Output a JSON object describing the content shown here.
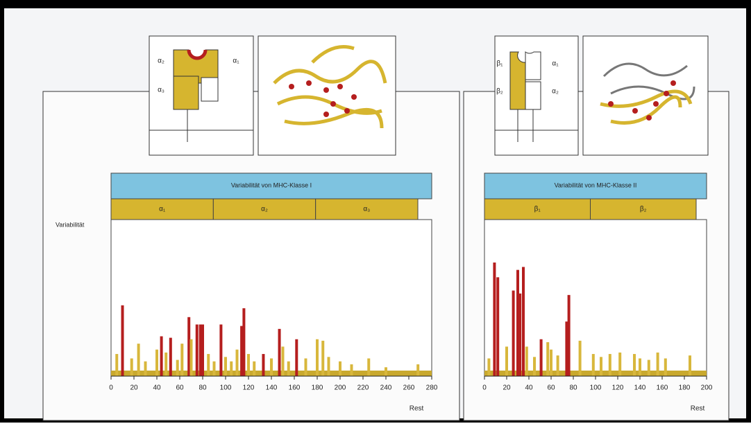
{
  "schematics": {
    "class_one_labels": [
      "α₂",
      "α₁",
      "α₃"
    ],
    "class_two_labels": [
      "β₁",
      "α₁",
      "β₂",
      "α₂"
    ]
  },
  "chart_data": [
    {
      "type": "bar",
      "title": "Variabilität von MHC-Klasse I",
      "domains": [
        "α₁",
        "α₂",
        "α₃"
      ],
      "y_label": "Variabilität",
      "x_label": "Rest",
      "xlim": [
        0,
        280
      ],
      "xticks": [
        0,
        20,
        40,
        60,
        80,
        100,
        120,
        140,
        160,
        180,
        200,
        220,
        240,
        260,
        280
      ],
      "ylim": [
        0,
        10
      ],
      "series": [
        {
          "color": "#b51e1e",
          "x": [
            10,
            44,
            52,
            68,
            75,
            78,
            80,
            96,
            114,
            116,
            133,
            147,
            162
          ],
          "values": [
            4.8,
            2.7,
            2.6,
            4.0,
            3.5,
            3.5,
            3.5,
            3.5,
            3.4,
            4.6,
            1.5,
            3.2,
            2.5
          ]
        },
        {
          "color": "#d8b73c",
          "x": [
            5,
            18,
            24,
            30,
            40,
            48,
            58,
            62,
            70,
            85,
            90,
            100,
            105,
            110,
            120,
            125,
            140,
            150,
            155,
            170,
            180,
            185,
            190,
            200,
            210,
            225,
            240,
            268
          ],
          "values": [
            1.5,
            1.2,
            2.2,
            1.0,
            1.8,
            1.6,
            1.1,
            2.2,
            2.5,
            1.5,
            1.0,
            1.3,
            1.0,
            1.8,
            1.5,
            1.0,
            1.2,
            2.0,
            1.0,
            1.2,
            2.5,
            2.4,
            1.3,
            1.0,
            0.8,
            1.2,
            0.6,
            0.8
          ]
        }
      ]
    },
    {
      "type": "bar",
      "title": "Variabilität von MHC-Klasse II",
      "domains": [
        "β₁",
        "β₂"
      ],
      "x_label": "Rest",
      "xlim": [
        0,
        200
      ],
      "xticks": [
        0,
        20,
        40,
        60,
        80,
        100,
        120,
        140,
        160,
        180,
        200
      ],
      "ylim": [
        0,
        10
      ],
      "series": [
        {
          "color": "#b51e1e",
          "x": [
            9,
            12,
            26,
            30,
            32,
            35,
            51,
            74,
            76
          ],
          "values": [
            7.7,
            6.7,
            5.8,
            7.2,
            5.6,
            7.4,
            2.5,
            3.7,
            5.5
          ]
        },
        {
          "color": "#d8b73c",
          "x": [
            4,
            20,
            38,
            45,
            57,
            60,
            66,
            86,
            98,
            105,
            113,
            122,
            135,
            140,
            148,
            156,
            163,
            185
          ],
          "values": [
            1.2,
            2.0,
            2.0,
            1.3,
            2.3,
            1.8,
            1.4,
            2.4,
            1.5,
            1.3,
            1.5,
            1.6,
            1.5,
            1.2,
            1.1,
            1.6,
            1.2,
            1.4
          ]
        }
      ]
    }
  ]
}
